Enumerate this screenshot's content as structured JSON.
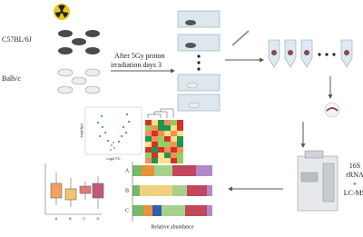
{
  "mice": {
    "strain_1": "C57BL/6J",
    "strain_2": "Balb/c"
  },
  "treatment": [
    "After 5Gy proton",
    "irradiation days 3"
  ],
  "analysis": [
    "16S",
    "rRNA",
    "+",
    "LC-MS"
  ],
  "volcano": {
    "xlabel": "Log2 FC",
    "ylabel": "-log10(p)"
  },
  "boxplot": {
    "groups": [
      "A",
      "B",
      "C",
      "D"
    ]
  },
  "abundance_chart": {
    "rows": [
      "A",
      "B",
      "C"
    ],
    "xlabel": "Relative abundance"
  }
}
